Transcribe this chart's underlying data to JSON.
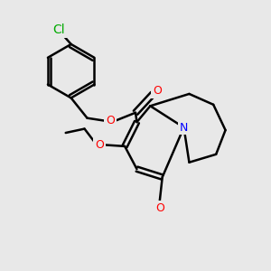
{
  "bg_color": "#e8e8e8",
  "bond_color": "#000000",
  "bond_width": 1.8,
  "atom_colors": {
    "O": "#ff0000",
    "N": "#0000ff",
    "Cl": "#00aa00",
    "C": "#000000"
  },
  "font_size": 9,
  "fig_size": [
    3.0,
    3.0
  ],
  "dpi": 100
}
